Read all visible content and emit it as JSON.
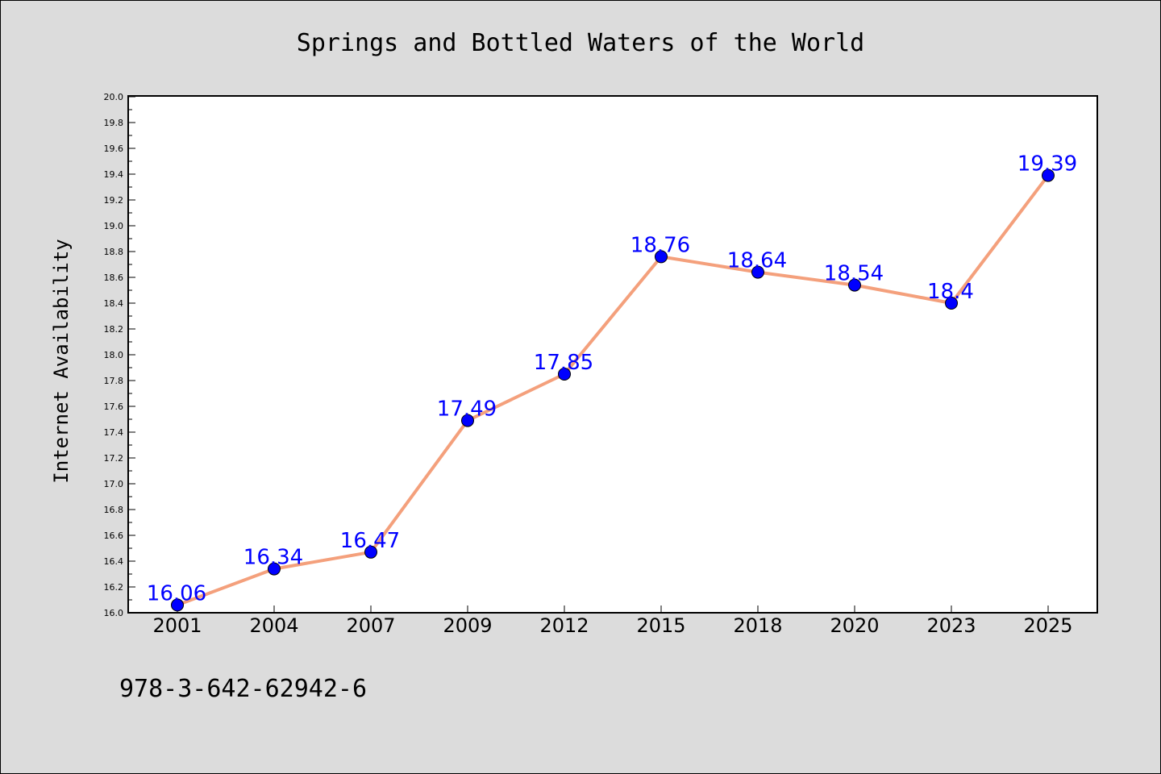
{
  "chart_data": {
    "type": "line",
    "title": "Springs and Bottled Waters of the World",
    "xlabel": "",
    "ylabel": "Internet Availability",
    "categories": [
      "2001",
      "2004",
      "2007",
      "2009",
      "2012",
      "2015",
      "2018",
      "2020",
      "2023",
      "2025"
    ],
    "series": [
      {
        "values": [
          16.06,
          16.34,
          16.47,
          17.49,
          17.85,
          18.76,
          18.64,
          18.54,
          18.4,
          19.39
        ],
        "data_labels": [
          "16.06",
          "16.34",
          "16.47",
          "17.49",
          "17.85",
          "18.76",
          "18.64",
          "18.54",
          "18.4",
          "19.39"
        ]
      }
    ],
    "ylim": [
      16.0,
      20.0
    ],
    "yticks": [
      "16.0",
      "16.2",
      "16.4",
      "16.6",
      "16.8",
      "17.0",
      "17.2",
      "17.4",
      "17.6",
      "17.8",
      "18.0",
      "18.2",
      "18.4",
      "18.6",
      "18.8",
      "19.0",
      "19.2",
      "19.4",
      "19.6",
      "19.8",
      "20.0"
    ],
    "grid": false,
    "legend": "none",
    "colors": {
      "line": "#f4a07c",
      "marker": "#0000ff",
      "data_label": "#0000ff",
      "plot_background": "#ffffff",
      "figure_background": "#dcdcdc"
    }
  },
  "footer": {
    "code": "978-3-642-62942-6"
  }
}
